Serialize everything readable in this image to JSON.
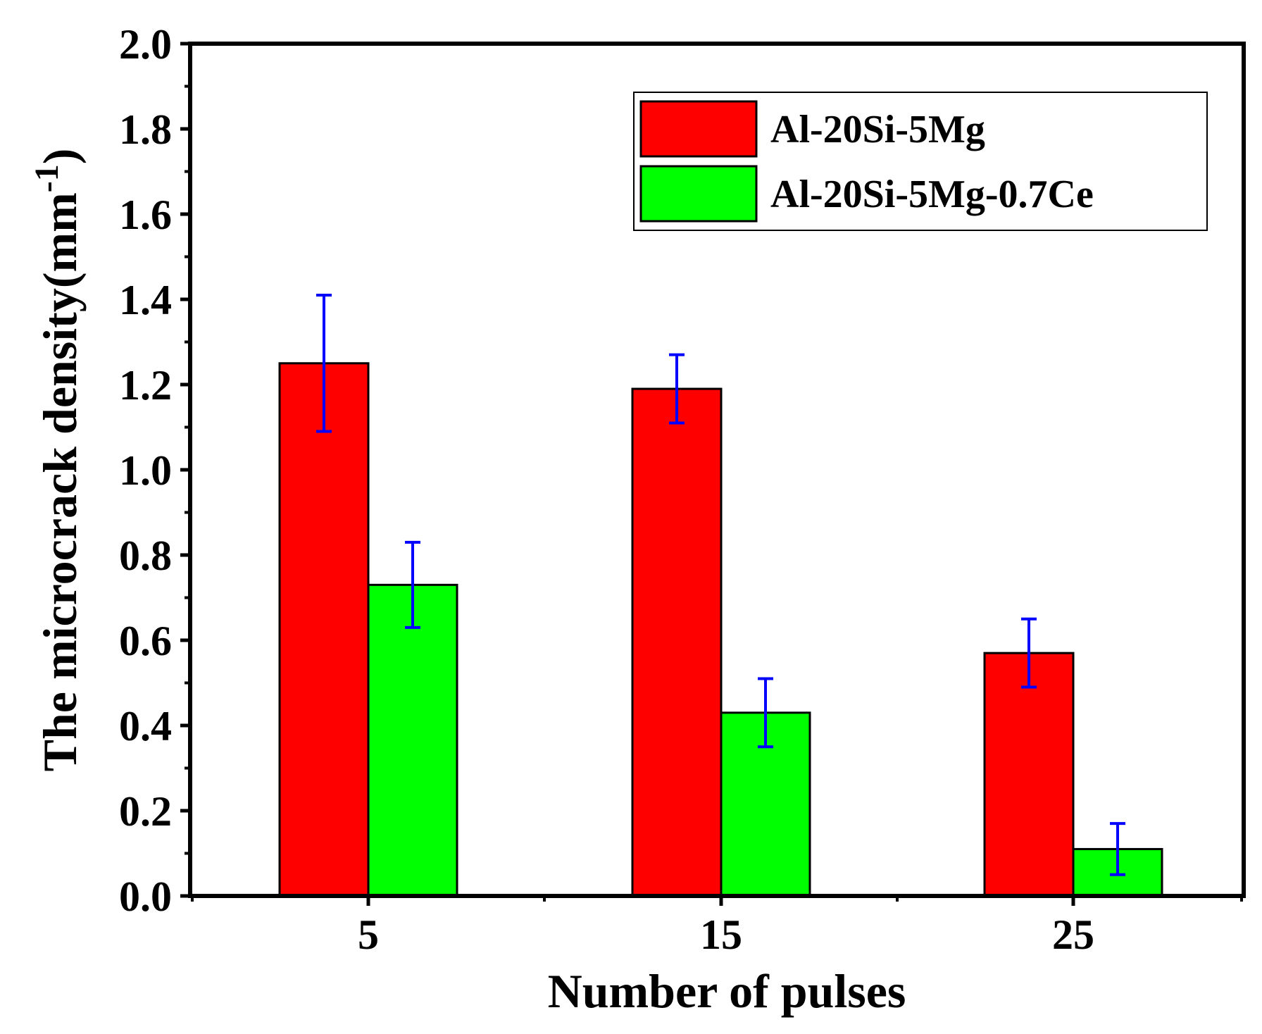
{
  "chart_data": {
    "type": "bar",
    "xlabel": "Number of pulses",
    "ylabel": "The  microcrack density(mm",
    "ylabel_sup": "-1",
    "ylabel_close": ")",
    "categories": [
      "5",
      "15",
      "25"
    ],
    "ylim": [
      0.0,
      2.0
    ],
    "yticks": [
      "0.0",
      "0.2",
      "0.4",
      "0.6",
      "0.8",
      "1.0",
      "1.2",
      "1.4",
      "1.6",
      "1.8",
      "2.0"
    ],
    "grid": false,
    "legend_position": "top-right",
    "series": [
      {
        "name": "Al-20Si-5Mg",
        "color": "#ff0000",
        "values": [
          1.25,
          1.19,
          0.57
        ],
        "err_low": [
          1.09,
          1.11,
          0.49
        ],
        "err_high": [
          1.41,
          1.27,
          0.65
        ]
      },
      {
        "name": "Al-20Si-5Mg-0.7Ce",
        "color": "#00ff00",
        "values": [
          0.73,
          0.43,
          0.11
        ],
        "err_low": [
          0.63,
          0.35,
          0.05
        ],
        "err_high": [
          0.83,
          0.51,
          0.17
        ]
      }
    ],
    "error_bar_color": "#0000ff"
  }
}
